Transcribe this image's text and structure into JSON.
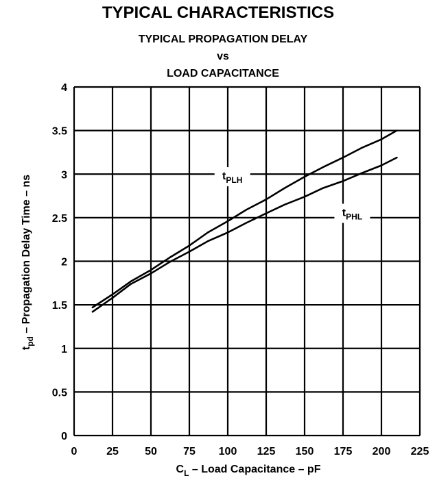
{
  "page_title": "TYPICAL CHARACTERISTICS",
  "chart_data": {
    "type": "line",
    "title": "TYPICAL PROPAGATION DELAY",
    "title_vs": "vs",
    "subtitle": "LOAD CAPACITANCE",
    "xlabel": {
      "main": "C",
      "sub": "L",
      "rest": " – Load Capacitance – pF"
    },
    "ylabel": {
      "main": "t",
      "sub": "pd",
      "rest": " – Propagation Delay Time – ns"
    },
    "xlim": [
      0,
      225
    ],
    "ylim": [
      0,
      4
    ],
    "x_ticks": [
      "0",
      "25",
      "50",
      "75",
      "100",
      "125",
      "150",
      "175",
      "200",
      "225"
    ],
    "y_ticks": [
      "0",
      "0.5",
      "1",
      "1.5",
      "2",
      "2.5",
      "3",
      "3.5",
      "4"
    ],
    "grid": true,
    "series": [
      {
        "name": "tPLH",
        "label_main": "t",
        "label_sub": "PLH",
        "label_at": [
          103,
          2.97
        ],
        "points": [
          [
            12,
            1.47
          ],
          [
            25,
            1.62
          ],
          [
            37,
            1.77
          ],
          [
            50,
            1.9
          ],
          [
            62,
            2.04
          ],
          [
            75,
            2.18
          ],
          [
            87,
            2.33
          ],
          [
            100,
            2.46
          ],
          [
            112,
            2.59
          ],
          [
            125,
            2.71
          ],
          [
            137,
            2.84
          ],
          [
            150,
            2.97
          ],
          [
            162,
            3.08
          ],
          [
            175,
            3.19
          ],
          [
            187,
            3.3
          ],
          [
            200,
            3.4
          ],
          [
            210,
            3.5
          ]
        ]
      },
      {
        "name": "tPHL",
        "label_main": "t",
        "label_sub": "PHL",
        "label_at": [
          181,
          2.55
        ],
        "points": [
          [
            12,
            1.42
          ],
          [
            25,
            1.58
          ],
          [
            37,
            1.74
          ],
          [
            50,
            1.86
          ],
          [
            62,
            1.99
          ],
          [
            75,
            2.11
          ],
          [
            87,
            2.23
          ],
          [
            100,
            2.33
          ],
          [
            112,
            2.44
          ],
          [
            125,
            2.55
          ],
          [
            137,
            2.65
          ],
          [
            150,
            2.74
          ],
          [
            162,
            2.84
          ],
          [
            175,
            2.92
          ],
          [
            187,
            3.01
          ],
          [
            200,
            3.1
          ],
          [
            210,
            3.19
          ]
        ]
      }
    ]
  }
}
